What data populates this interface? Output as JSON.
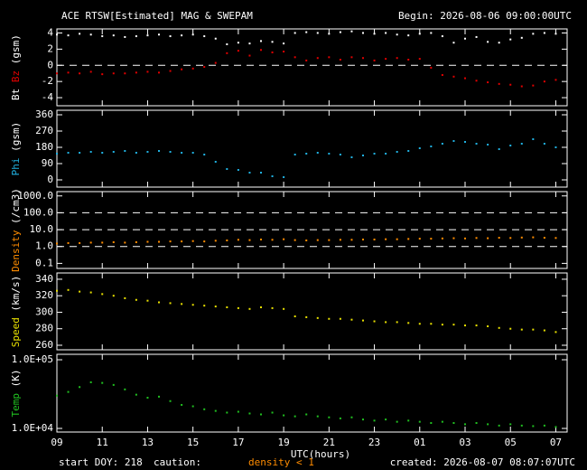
{
  "chart_data": [
    {
      "type": "scatter",
      "title": "ACE RTSW[Estimated] MAG & SWEPAM",
      "subtitle": "Begin: 2026-08-06 09:00:00UTC",
      "ylabel": "(gsm)",
      "x": [
        0,
        0.5,
        1,
        1.5,
        2,
        2.5,
        3,
        3.5,
        4,
        4.5,
        5,
        5.5,
        6,
        6.5,
        7,
        7.5,
        8,
        8.5,
        9,
        9.5,
        10,
        10.5,
        11,
        11.5,
        12,
        12.5,
        13,
        13.5,
        14,
        14.5,
        15,
        15.5,
        16,
        16.5,
        17,
        17.5,
        18,
        18.5,
        19,
        19.5,
        20,
        20.5,
        21,
        21.5,
        22
      ],
      "series": [
        {
          "name": "Bt",
          "color": "#ffffff",
          "values": [
            3.8,
            3.7,
            3.9,
            3.8,
            3.6,
            3.7,
            3.5,
            3.6,
            3.7,
            3.8,
            3.6,
            3.7,
            3.8,
            3.6,
            3.3,
            2.6,
            2.8,
            2.7,
            3.0,
            2.9,
            2.7,
            4.0,
            4.1,
            4.0,
            3.9,
            4.1,
            4.2,
            4.0,
            3.9,
            4.0,
            3.8,
            3.7,
            3.9,
            4.0,
            3.6,
            2.8,
            3.3,
            3.5,
            2.9,
            2.8,
            3.2,
            3.4,
            3.9,
            4.0,
            3.9
          ]
        },
        {
          "name": "Bz",
          "color": "#e00000",
          "values": [
            -1.0,
            -0.9,
            -1.0,
            -0.8,
            -1.1,
            -1.0,
            -1.0,
            -0.9,
            -0.8,
            -0.9,
            -0.7,
            -0.5,
            -0.4,
            -0.2,
            0.3,
            1.5,
            1.8,
            1.2,
            1.9,
            1.6,
            1.7,
            1.0,
            0.6,
            0.9,
            1.0,
            0.7,
            1.0,
            0.9,
            0.6,
            0.8,
            0.9,
            0.7,
            0.8,
            -0.3,
            -1.2,
            -1.4,
            -1.6,
            -1.9,
            -2.1,
            -2.3,
            -2.4,
            -2.6,
            -2.5,
            -2.0,
            -1.8
          ]
        }
      ],
      "xlim": [
        0,
        22.5
      ],
      "ylim": [
        -5,
        4.5
      ],
      "yticks": [
        4,
        2,
        0,
        -2,
        -4
      ],
      "hlines": [
        0
      ]
    },
    {
      "type": "scatter",
      "ylabel": "(gsm)",
      "x": [
        0,
        0.5,
        1,
        1.5,
        2,
        2.5,
        3,
        3.5,
        4,
        4.5,
        5,
        5.5,
        6,
        6.5,
        7,
        7.5,
        8,
        8.5,
        9,
        9.5,
        10,
        10.5,
        11,
        11.5,
        12,
        12.5,
        13,
        13.5,
        14,
        14.5,
        15,
        15.5,
        16,
        16.5,
        17,
        17.5,
        18,
        18.5,
        19,
        19.5,
        20,
        20.5,
        21,
        21.5,
        22
      ],
      "series": [
        {
          "name": "Phi",
          "color": "#20b0e0",
          "values": [
            145,
            150,
            150,
            155,
            150,
            155,
            160,
            150,
            155,
            160,
            155,
            150,
            150,
            140,
            100,
            60,
            55,
            40,
            40,
            20,
            15,
            140,
            145,
            150,
            145,
            140,
            125,
            135,
            145,
            145,
            155,
            160,
            175,
            185,
            200,
            215,
            210,
            200,
            195,
            170,
            190,
            200,
            225,
            200,
            180
          ]
        }
      ],
      "xlim": [
        0,
        22.5
      ],
      "ylim": [
        -40,
        385
      ],
      "yticks": [
        360,
        270,
        180,
        90,
        0
      ]
    },
    {
      "type": "scatter",
      "ylabel": "(/cm3)",
      "log_y": true,
      "x": [
        0,
        0.5,
        1,
        1.5,
        2,
        2.5,
        3,
        3.5,
        4,
        4.5,
        5,
        5.5,
        6,
        6.5,
        7,
        7.5,
        8,
        8.5,
        9,
        9.5,
        10,
        10.5,
        11,
        11.5,
        12,
        12.5,
        13,
        13.5,
        14,
        14.5,
        15,
        15.5,
        16,
        16.5,
        17,
        17.5,
        18,
        18.5,
        19,
        19.5,
        20,
        20.5,
        21,
        21.5,
        22
      ],
      "series": [
        {
          "name": "Density",
          "color": "#ff8c00",
          "values": [
            1.5,
            1.6,
            1.6,
            1.7,
            1.7,
            1.8,
            1.7,
            1.8,
            1.9,
            1.9,
            2.0,
            2.0,
            2.1,
            2.0,
            2.2,
            2.3,
            2.5,
            2.4,
            2.6,
            2.5,
            2.7,
            2.4,
            2.3,
            2.4,
            2.4,
            2.5,
            2.5,
            2.6,
            2.6,
            2.7,
            2.7,
            2.8,
            2.9,
            2.9,
            3.0,
            3.1,
            3.0,
            3.2,
            3.1,
            3.3,
            3.2,
            3.4,
            3.5,
            3.3,
            3.2
          ]
        }
      ],
      "xlim": [
        0,
        22.5
      ],
      "ylim": [
        0.05,
        1800
      ],
      "yticks": [
        {
          "value": 1000,
          "label": "1000.0"
        },
        {
          "value": 100,
          "label": "100.0"
        },
        {
          "value": 10,
          "label": "10.0"
        },
        {
          "value": 1,
          "label": "1.0"
        },
        {
          "value": 0.1,
          "label": "0.1"
        }
      ],
      "hlines": [
        100,
        10,
        1
      ]
    },
    {
      "type": "scatter",
      "ylabel": "(km/s)",
      "x": [
        0,
        0.5,
        1,
        1.5,
        2,
        2.5,
        3,
        3.5,
        4,
        4.5,
        5,
        5.5,
        6,
        6.5,
        7,
        7.5,
        8,
        8.5,
        9,
        9.5,
        10,
        10.5,
        11,
        11.5,
        12,
        12.5,
        13,
        13.5,
        14,
        14.5,
        15,
        15.5,
        16,
        16.5,
        17,
        17.5,
        18,
        18.5,
        19,
        19.5,
        20,
        20.5,
        21,
        21.5,
        22
      ],
      "series": [
        {
          "name": "Speed",
          "color": "#e8e000",
          "values": [
            326,
            327,
            325,
            324,
            322,
            320,
            317,
            315,
            314,
            312,
            311,
            310,
            309,
            308,
            307,
            306,
            305,
            304,
            306,
            305,
            304,
            295,
            294,
            293,
            292,
            292,
            291,
            290,
            289,
            288,
            288,
            287,
            286,
            286,
            285,
            285,
            284,
            284,
            283,
            281,
            280,
            279,
            279,
            278,
            276
          ]
        }
      ],
      "xlim": [
        0,
        22.5
      ],
      "ylim": [
        254.5,
        347.6
      ],
      "yticks": [
        340,
        320,
        300,
        280,
        260
      ]
    },
    {
      "type": "scatter",
      "ylabel": "(K)",
      "log_y": true,
      "xlabel": "UTC(hours)",
      "x": [
        0,
        0.5,
        1,
        1.5,
        2,
        2.5,
        3,
        3.5,
        4,
        4.5,
        5,
        5.5,
        6,
        6.5,
        7,
        7.5,
        8,
        8.5,
        9,
        9.5,
        10,
        10.5,
        11,
        11.5,
        12,
        12.5,
        13,
        13.5,
        14,
        14.5,
        15,
        15.5,
        16,
        16.5,
        17,
        17.5,
        18,
        18.5,
        19,
        19.5,
        20,
        20.5,
        21,
        21.5,
        22
      ],
      "series": [
        {
          "name": "Temp",
          "color": "#20c020",
          "values": [
            30000,
            34000,
            40000,
            47000,
            46000,
            43000,
            37000,
            31000,
            28000,
            29000,
            25000,
            22000,
            21000,
            19000,
            18000,
            17000,
            17500,
            16500,
            16000,
            17000,
            15500,
            15000,
            16000,
            15000,
            14500,
            14000,
            14500,
            13500,
            13000,
            13500,
            12500,
            13000,
            12500,
            12000,
            12500,
            12000,
            11500,
            12000,
            11500,
            11000,
            11500,
            11000,
            10800,
            11000,
            10500
          ]
        }
      ],
      "xlim": [
        0,
        22.5
      ],
      "ylim": [
        8860,
        120000
      ],
      "yticks": [
        {
          "value": 100000,
          "label": "1.0E+05"
        },
        {
          "value": 10000,
          "label": "1.0E+04"
        }
      ],
      "xticks": [
        {
          "value": 0,
          "label": "09"
        },
        {
          "value": 2,
          "label": "11"
        },
        {
          "value": 4,
          "label": "13"
        },
        {
          "value": 6,
          "label": "15"
        },
        {
          "value": 8,
          "label": "17"
        },
        {
          "value": 10,
          "label": "19"
        },
        {
          "value": 12,
          "label": "21"
        },
        {
          "value": 14,
          "label": "23"
        },
        {
          "value": 16,
          "label": "01"
        },
        {
          "value": 18,
          "label": "03"
        },
        {
          "value": 20,
          "label": "05"
        },
        {
          "value": 22,
          "label": "07"
        }
      ]
    }
  ],
  "footer": {
    "start": "start DOY: 218",
    "caution": "caution:",
    "density_note": "density < 1",
    "created": "created: 2026-08-07 08:07:07UTC"
  }
}
